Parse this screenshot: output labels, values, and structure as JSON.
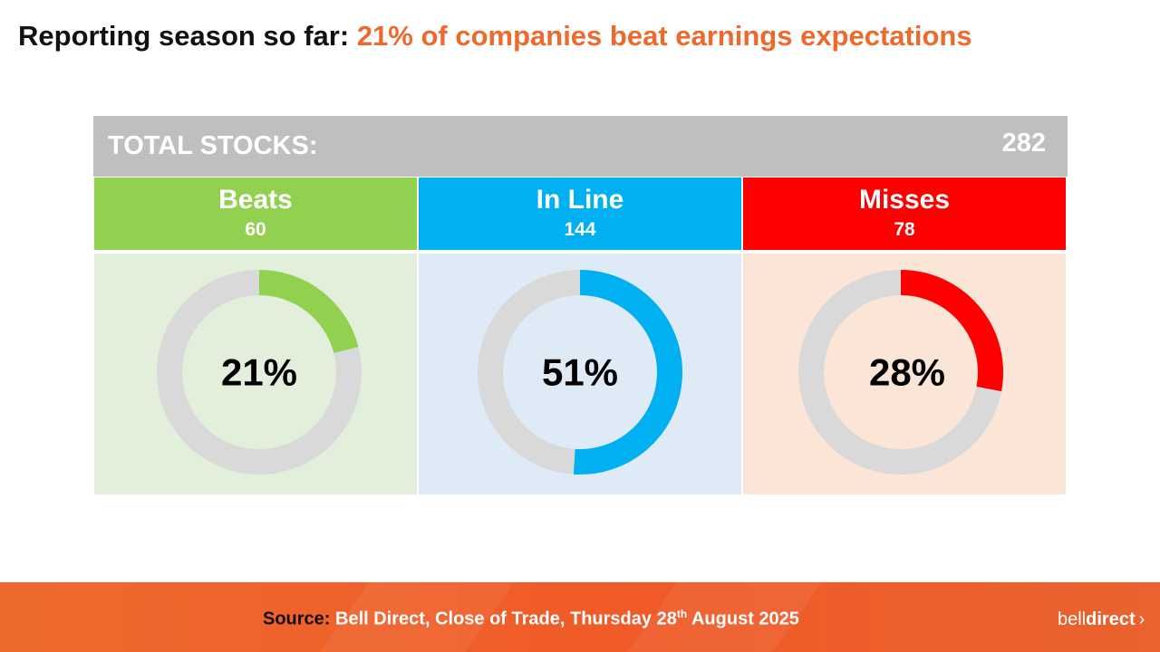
{
  "title": {
    "prefix": "Reporting season so far:",
    "highlight": "21% of companies beat earnings expectations",
    "highlight_color": "#ee6a2c"
  },
  "total": {
    "label": "TOTAL STOCKS:",
    "value": "282"
  },
  "categories": [
    {
      "name": "Beats",
      "count": "60",
      "percent_label": "21%",
      "percent": 21,
      "header_color": "#92d050",
      "panel_color": "#e2efda",
      "arc_color": "#92d050"
    },
    {
      "name": "In Line",
      "count": "144",
      "percent_label": "51%",
      "percent": 51,
      "header_color": "#00b0f0",
      "panel_color": "#deebf7",
      "arc_color": "#00b0f0"
    },
    {
      "name": "Misses",
      "count": "78",
      "percent_label": "28%",
      "percent": 28,
      "header_color": "#ff0000",
      "panel_color": "#fbe5d6",
      "arc_color": "#ff0000"
    }
  ],
  "chart_data": {
    "type": "pie",
    "title": "Reporting season so far: 21% of companies beat earnings expectations",
    "total": 282,
    "categories": [
      "Beats",
      "In Line",
      "Misses"
    ],
    "values": [
      60,
      144,
      78
    ],
    "percentages": [
      21,
      51,
      28
    ]
  },
  "footer": {
    "source_label": "Source:",
    "source_text": "Bell Direct, Close of Trade, Thursday 28",
    "source_sup": "th",
    "source_end": " August 2025",
    "logo_bell": "bell",
    "logo_direct": "direct",
    "logo_chevron": "›"
  }
}
